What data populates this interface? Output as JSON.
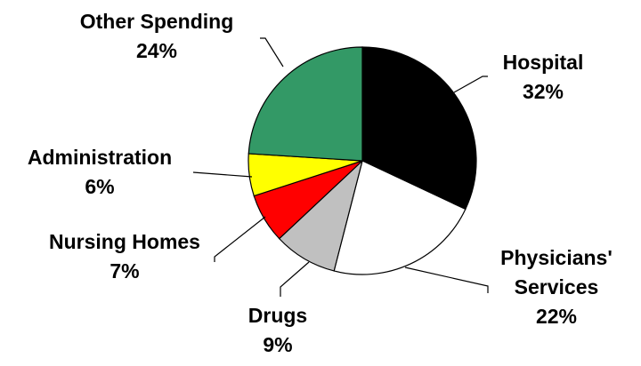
{
  "chart_data": {
    "type": "pie",
    "title": "",
    "slices": [
      {
        "name_lines": [
          "Hospital"
        ],
        "value": 32,
        "value_label": "32%",
        "color": "#000000"
      },
      {
        "name_lines": [
          "Physicians'",
          "Services"
        ],
        "value": 22,
        "value_label": "22%",
        "color": "#ffffff"
      },
      {
        "name_lines": [
          "Drugs"
        ],
        "value": 9,
        "value_label": "9%",
        "color": "#c0c0c0"
      },
      {
        "name_lines": [
          "Nursing Homes"
        ],
        "value": 7,
        "value_label": "7%",
        "color": "#ff0000"
      },
      {
        "name_lines": [
          "Administration"
        ],
        "value": 6,
        "value_label": "6%",
        "color": "#ffff00"
      },
      {
        "name_lines": [
          "Other Spending"
        ],
        "value": 24,
        "value_label": "24%",
        "color": "#339966"
      }
    ]
  }
}
